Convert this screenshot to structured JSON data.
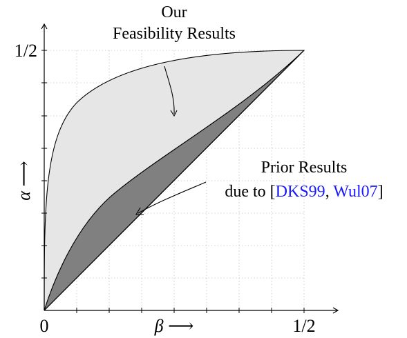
{
  "axes": {
    "x_label": "β ⟶",
    "y_label": "α ⟶",
    "x_ticks": [
      "0",
      "1/2"
    ],
    "y_ticks": [
      "1/2"
    ]
  },
  "annotations": {
    "our": {
      "line1": "Our",
      "line2": "Feasibility Results"
    },
    "prior": {
      "line1": "Prior Results",
      "prefix": "due to [",
      "cite1": "DKS99",
      "sep": ", ",
      "cite2": "Wul07",
      "suffix": "]"
    }
  },
  "regions": {
    "our_feasibility_fill": "#e6e6e6",
    "prior_results_fill": "#808080",
    "stroke": "#000000"
  }
}
